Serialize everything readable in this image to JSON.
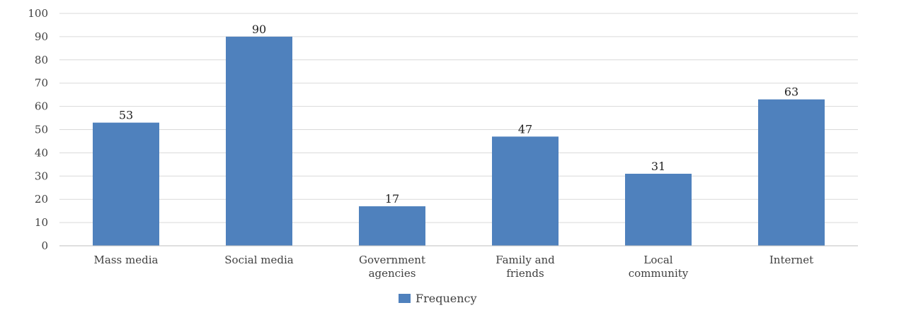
{
  "chart_data": {
    "type": "bar",
    "categories": [
      [
        "Mass media"
      ],
      [
        "Social media"
      ],
      [
        "Government",
        "agencies"
      ],
      [
        "Family and",
        "friends"
      ],
      [
        "Local",
        "community"
      ],
      [
        "Internet"
      ]
    ],
    "series": [
      {
        "name": "Frequency",
        "values": [
          53,
          90,
          17,
          47,
          31,
          63
        ],
        "color": "#4f81bd"
      }
    ],
    "ylim": [
      0,
      100
    ],
    "yticks": [
      0,
      10,
      20,
      30,
      40,
      50,
      60,
      70,
      80,
      90,
      100
    ],
    "grid": true,
    "legend_position": "bottom",
    "data_labels": true,
    "colors": {
      "bar": "#4f81bd",
      "grid": "#d9d9d9",
      "axis": "#bfbfbf",
      "text": "#404040"
    }
  }
}
